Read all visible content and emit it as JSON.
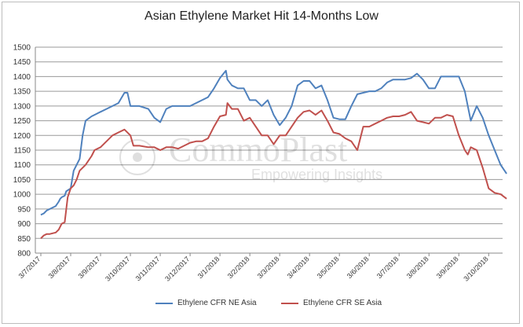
{
  "chart_data": {
    "type": "line",
    "title": "Asian Ethylene Market Hit 14-Months Low",
    "xlabel": "",
    "ylabel": "",
    "ylim": [
      800,
      1500
    ],
    "yticks": [
      800,
      850,
      900,
      950,
      1000,
      1050,
      1100,
      1150,
      1200,
      1250,
      1300,
      1350,
      1400,
      1450,
      1500
    ],
    "xticks": [
      "3/7/2017",
      "3/8/2017",
      "3/9/2017",
      "3/10/2017",
      "3/11/2017",
      "3/12/2017",
      "3/1/2018",
      "3/2/2018",
      "3/3/2018",
      "3/4/2018",
      "3/5/2018",
      "3/6/2018",
      "3/7/2018",
      "3/8/2018",
      "3/9/2018",
      "3/10/2018"
    ],
    "grid": true,
    "legend_position": "bottom",
    "watermark": "CommoPlast Empowering Insights",
    "series": [
      {
        "name": "Ethylene CFR NE Asia",
        "color": "#4f81bd",
        "x": [
          0,
          0.1,
          0.2,
          0.3,
          0.5,
          0.6,
          0.65,
          0.7,
          0.8,
          0.85,
          1.0,
          1.1,
          1.2,
          1.3,
          1.4,
          1.5,
          1.7,
          1.8,
          2.0,
          2.2,
          2.4,
          2.6,
          2.8,
          2.9,
          3.0,
          3.1,
          3.3,
          3.6,
          3.8,
          4.0,
          4.2,
          4.4,
          4.6,
          4.8,
          5.0,
          5.2,
          5.4,
          5.6,
          5.8,
          6.0,
          6.2,
          6.25,
          6.4,
          6.6,
          6.8,
          7.0,
          7.2,
          7.4,
          7.6,
          7.8,
          8.0,
          8.2,
          8.4,
          8.6,
          8.8,
          9.0,
          9.2,
          9.4,
          9.6,
          9.8,
          10.0,
          10.2,
          10.4,
          10.6,
          10.8,
          11.0,
          11.2,
          11.4,
          11.6,
          11.8,
          12.0,
          12.2,
          12.4,
          12.6,
          12.8,
          13.0,
          13.2,
          13.4,
          13.6,
          13.8,
          14.0,
          14.2,
          14.3,
          14.4,
          14.6,
          14.8,
          15.0,
          15.2,
          15.4,
          15.6
        ],
        "y": [
          930,
          935,
          945,
          950,
          960,
          975,
          985,
          990,
          995,
          1010,
          1020,
          1080,
          1100,
          1120,
          1200,
          1250,
          1265,
          1270,
          1280,
          1290,
          1300,
          1310,
          1345,
          1345,
          1300,
          1300,
          1300,
          1290,
          1260,
          1245,
          1290,
          1300,
          1300,
          1300,
          1300,
          1310,
          1320,
          1330,
          1360,
          1395,
          1420,
          1390,
          1370,
          1360,
          1360,
          1320,
          1320,
          1300,
          1320,
          1270,
          1235,
          1260,
          1300,
          1370,
          1385,
          1385,
          1360,
          1370,
          1320,
          1260,
          1255,
          1255,
          1300,
          1340,
          1345,
          1350,
          1350,
          1360,
          1380,
          1390,
          1390,
          1390,
          1395,
          1410,
          1390,
          1360,
          1360,
          1400,
          1400,
          1400,
          1400,
          1350,
          1300,
          1250,
          1300,
          1260,
          1200,
          1150,
          1100,
          1070
        ]
      },
      {
        "name": "Ethylene CFR SE Asia",
        "color": "#c0504d",
        "x": [
          0,
          0.1,
          0.2,
          0.3,
          0.5,
          0.6,
          0.7,
          0.8,
          0.9,
          1.0,
          1.1,
          1.2,
          1.3,
          1.5,
          1.7,
          1.8,
          2.0,
          2.2,
          2.4,
          2.6,
          2.8,
          3.0,
          3.1,
          3.3,
          3.6,
          3.8,
          4.0,
          4.2,
          4.4,
          4.6,
          4.8,
          5.0,
          5.2,
          5.4,
          5.6,
          5.8,
          6.0,
          6.2,
          6.25,
          6.4,
          6.6,
          6.8,
          7.0,
          7.2,
          7.4,
          7.6,
          7.8,
          8.0,
          8.2,
          8.4,
          8.6,
          8.8,
          9.0,
          9.2,
          9.4,
          9.6,
          9.8,
          10.0,
          10.2,
          10.4,
          10.6,
          10.8,
          11.0,
          11.2,
          11.4,
          11.6,
          11.8,
          12.0,
          12.2,
          12.4,
          12.6,
          12.8,
          13.0,
          13.2,
          13.4,
          13.6,
          13.8,
          14.0,
          14.2,
          14.3,
          14.4,
          14.6,
          14.8,
          15.0,
          15.2,
          15.4,
          15.6
        ],
        "y": [
          850,
          860,
          865,
          865,
          870,
          880,
          900,
          905,
          990,
          1020,
          1030,
          1050,
          1080,
          1100,
          1130,
          1150,
          1160,
          1180,
          1200,
          1210,
          1220,
          1200,
          1165,
          1165,
          1160,
          1160,
          1150,
          1160,
          1160,
          1155,
          1165,
          1175,
          1180,
          1180,
          1190,
          1230,
          1265,
          1270,
          1310,
          1290,
          1290,
          1250,
          1260,
          1230,
          1200,
          1200,
          1170,
          1200,
          1200,
          1230,
          1260,
          1280,
          1285,
          1270,
          1285,
          1250,
          1210,
          1205,
          1190,
          1180,
          1150,
          1230,
          1230,
          1240,
          1250,
          1260,
          1265,
          1265,
          1270,
          1280,
          1250,
          1245,
          1240,
          1260,
          1260,
          1270,
          1265,
          1200,
          1150,
          1135,
          1160,
          1150,
          1090,
          1020,
          1005,
          1000,
          985
        ]
      }
    ]
  }
}
